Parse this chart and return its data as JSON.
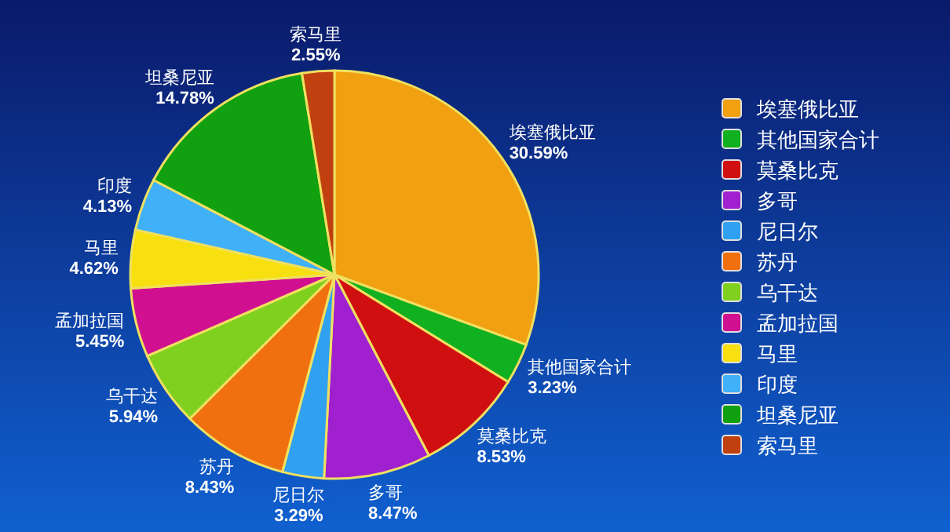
{
  "chart_data": {
    "type": "pie",
    "categories": [
      "埃塞俄比亚",
      "其他国家合计",
      "莫桑比克",
      "多哥",
      "尼日尔",
      "苏丹",
      "乌干达",
      "孟加拉国",
      "马里",
      "印度",
      "坦桑尼亚",
      "索马里"
    ],
    "values": [
      30.59,
      3.23,
      8.53,
      8.47,
      3.29,
      8.43,
      5.94,
      5.45,
      4.62,
      4.13,
      14.78,
      2.55
    ],
    "value_labels": [
      "30.59%",
      "3.23%",
      "8.53%",
      "8.47%",
      "3.29%",
      "8.43%",
      "5.94%",
      "5.45%",
      "4.62%",
      "4.13%",
      "14.78%",
      "2.55%"
    ],
    "colors": [
      "#f0a010",
      "#10b020",
      "#d01010",
      "#a020d0",
      "#30a0f0",
      "#f07010",
      "#80d020",
      "#d01090",
      "#f8e010",
      "#40b0f8",
      "#10a010",
      "#c04010"
    ],
    "legend": "right"
  }
}
